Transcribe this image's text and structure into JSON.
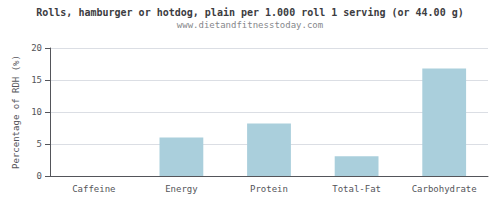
{
  "chart_data": {
    "type": "bar",
    "title": "Rolls, hamburger or hotdog, plain per 1.000 roll 1 serving (or 44.00 g)",
    "subtitle": "www.dietandfitnesstoday.com",
    "ylabel": "Percentage of RDH (%)",
    "categories": [
      "Caffeine",
      "Energy",
      "Protein",
      "Total-Fat",
      "Carbohydrate"
    ],
    "values": [
      0,
      6.0,
      8.2,
      3.1,
      16.8
    ],
    "color": "#aacfdc",
    "ylim": [
      0,
      20
    ],
    "yticks": [
      0,
      5,
      10,
      15,
      20
    ],
    "grid": true
  }
}
